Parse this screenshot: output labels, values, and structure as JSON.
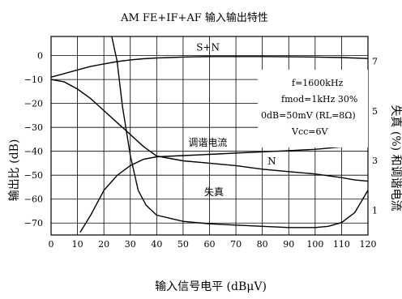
{
  "chart_data": {
    "type": "line",
    "title": "AM  FE+IF+AF 输入输出特性",
    "xlabel": "输入信号电平    (dBμV)",
    "ylabel": "输出比  (dB)",
    "y2label": "失真 (%) 和调谐电流",
    "xlim": [
      0,
      120
    ],
    "ylim": [
      -75,
      8
    ],
    "y2lim": [
      0,
      8
    ],
    "x_ticks": [
      "0",
      "10",
      "20",
      "30",
      "40",
      "50",
      "60",
      "70",
      "80",
      "90",
      "100",
      "110",
      "120"
    ],
    "x_tick_values": [
      0,
      10,
      20,
      30,
      40,
      50,
      60,
      70,
      80,
      90,
      100,
      110,
      120
    ],
    "y_ticks": [
      "0",
      "−10",
      "−20",
      "−30",
      "−40",
      "−50",
      "−60",
      "−70"
    ],
    "y_tick_values": [
      0,
      -10,
      -20,
      -30,
      -40,
      -50,
      -60,
      -70
    ],
    "y2_ticks": [
      "7",
      "5",
      "3",
      "1"
    ],
    "y2_tick_values": [
      7,
      5,
      3,
      1
    ],
    "grid": true,
    "annotation_lines": [
      "f=1600kHz",
      "fmod=1kHz 30%",
      "0dB=50mV (RL=8Ω)",
      "Vcc=6V"
    ],
    "series": [
      {
        "name": "S+N",
        "label_at": [
          55,
          2
        ],
        "x": [
          0,
          5,
          10,
          15,
          20,
          25,
          30,
          35,
          40,
          45,
          50,
          55,
          60,
          70,
          80,
          90,
          100,
          110,
          120
        ],
        "y": [
          -9,
          -7.5,
          -6,
          -4.5,
          -3.5,
          -2.5,
          -1.8,
          -1.3,
          -1,
          -0.8,
          -0.6,
          -0.5,
          -0.4,
          -0.4,
          -0.4,
          -0.5,
          -0.6,
          -0.8,
          -1.2
        ]
      },
      {
        "name": "N",
        "label_at": [
          82,
          -45.5
        ],
        "x": [
          0,
          5,
          10,
          15,
          20,
          25,
          30,
          35,
          40,
          45,
          50,
          60,
          70,
          80,
          90,
          100,
          110,
          115,
          120
        ],
        "y": [
          -10,
          -11,
          -14,
          -18,
          -23,
          -28,
          -33,
          -38,
          -42,
          -43,
          -44,
          -45,
          -46,
          -47.5,
          -48.5,
          -49.5,
          -51,
          -52,
          -52.5
        ]
      },
      {
        "name": "调谐电流",
        "axis": "y2",
        "label_at": [
          52,
          3.6
        ],
        "x": [
          11,
          15,
          20,
          25,
          30,
          35,
          40,
          50,
          60,
          70,
          80,
          90,
          100,
          110,
          120
        ],
        "y": [
          0.1,
          0.8,
          1.8,
          2.4,
          2.8,
          3.05,
          3.15,
          3.2,
          3.25,
          3.3,
          3.35,
          3.4,
          3.45,
          3.55,
          3.65
        ]
      },
      {
        "name": "失真",
        "axis": "y2",
        "label_at": [
          58,
          1.6
        ],
        "x": [
          23,
          25,
          27,
          30,
          33,
          36,
          40,
          50,
          60,
          70,
          80,
          90,
          100,
          105,
          110,
          115,
          120
        ],
        "y": [
          8.6,
          7,
          5.2,
          3.2,
          1.8,
          1.2,
          0.8,
          0.55,
          0.45,
          0.4,
          0.35,
          0.3,
          0.3,
          0.35,
          0.5,
          0.9,
          1.8
        ]
      }
    ]
  }
}
